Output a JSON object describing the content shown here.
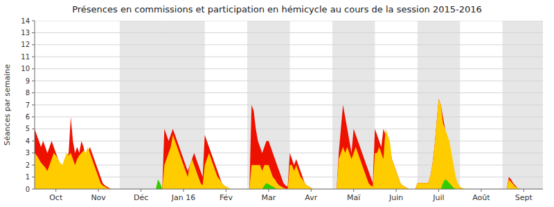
{
  "chart_data": {
    "type": "area",
    "title": "Présences en commissions et participation en hémicycle au cours de la session 2015-2016",
    "y_label": "Séances par semaine",
    "ylim": [
      0,
      14
    ],
    "yticks": [
      0,
      1,
      2,
      3,
      4,
      5,
      6,
      7,
      8,
      9,
      10,
      11,
      12,
      13,
      14
    ],
    "grid": true,
    "shaded_months": [
      "Déc",
      "Jan 16",
      "Mar",
      "Maï",
      "Juil",
      "Sept"
    ],
    "categories": [
      null,
      null,
      null,
      null,
      null,
      null,
      null,
      null,
      null,
      null,
      "Oct",
      null,
      null,
      null,
      null,
      null,
      null,
      null,
      null,
      null,
      null,
      null,
      null,
      null,
      null,
      null,
      null,
      null,
      null,
      null,
      "Nov",
      null,
      null,
      null,
      null,
      null,
      null,
      null,
      null,
      null,
      null,
      null,
      null,
      null,
      null,
      null,
      null,
      null,
      null,
      null,
      "Déc",
      null,
      null,
      null,
      null,
      null,
      null,
      null,
      null,
      null,
      null,
      null,
      null,
      null,
      null,
      null,
      null,
      null,
      null,
      null,
      "Jan 16",
      null,
      null,
      null,
      null,
      null,
      null,
      null,
      null,
      null,
      null,
      null,
      null,
      null,
      null,
      null,
      null,
      null,
      null,
      null,
      "Fév",
      null,
      null,
      null,
      null,
      null,
      null,
      null,
      null,
      null,
      null,
      null,
      null,
      null,
      null,
      null,
      null,
      null,
      null,
      null,
      "Mar",
      null,
      null,
      null,
      null,
      null,
      null,
      null,
      null,
      null,
      null,
      null,
      null,
      null,
      null,
      null,
      null,
      null,
      null,
      null,
      "Avr",
      null,
      null,
      null,
      null,
      null,
      null,
      null,
      null,
      null,
      null,
      null,
      null,
      null,
      null,
      null,
      null,
      null,
      null,
      null,
      "Maï",
      null,
      null,
      null,
      null,
      null,
      null,
      null,
      null,
      null,
      null,
      null,
      null,
      null,
      null,
      null,
      null,
      null,
      null,
      null,
      "Juin",
      null,
      null,
      null,
      null,
      null,
      null,
      null,
      null,
      null,
      null,
      null,
      null,
      null,
      null,
      null,
      null,
      null,
      null,
      null,
      "Juil",
      null,
      null,
      null,
      null,
      null,
      null,
      null,
      null,
      null,
      null,
      null,
      null,
      null,
      null,
      null,
      null,
      null,
      null,
      null,
      "Août",
      null,
      null,
      null,
      null,
      null,
      null,
      null,
      null,
      null,
      null,
      null,
      null,
      null,
      null,
      null,
      null,
      null,
      null,
      null,
      "Sept",
      null,
      null,
      null,
      null,
      null,
      null,
      null,
      null,
      null
    ],
    "series": [
      {
        "color": "#ee1100",
        "values": [
          5.0,
          4.5,
          4.0,
          3.5,
          4.0,
          3.5,
          3.0,
          3.5,
          4.0,
          3.5,
          3.0,
          2.5,
          2.0,
          1.5,
          2.0,
          2.5,
          3.0,
          6.0,
          4.0,
          3.0,
          3.5,
          3.0,
          4.0,
          3.5,
          2.5,
          3.0,
          3.5,
          3.0,
          2.5,
          2.0,
          1.5,
          1.0,
          0.5,
          0.3,
          0.2,
          0.1,
          0.0,
          0.0,
          0.0,
          0.0,
          0.0,
          0.0,
          0.0,
          0.0,
          0.0,
          0.0,
          0.0,
          0.0,
          0.0,
          0.0,
          0.0,
          0.0,
          0.0,
          0.0,
          0.0,
          0.0,
          0.0,
          0.0,
          0.0,
          0.0,
          0.0,
          5.0,
          4.5,
          4.0,
          4.5,
          5.0,
          4.5,
          4.0,
          3.5,
          3.0,
          2.5,
          2.0,
          1.5,
          2.0,
          2.5,
          3.0,
          2.5,
          2.0,
          1.5,
          1.0,
          4.5,
          4.0,
          3.5,
          3.0,
          2.5,
          2.0,
          1.5,
          1.0,
          0.5,
          0.3,
          0.2,
          0.1,
          0.0,
          0.0,
          0.0,
          0.0,
          0.0,
          0.0,
          0.0,
          0.0,
          0.0,
          0.0,
          7.0,
          6.5,
          5.0,
          4.0,
          3.5,
          3.0,
          3.5,
          4.0,
          4.0,
          3.5,
          3.0,
          2.5,
          2.0,
          1.5,
          1.0,
          0.5,
          0.3,
          0.2,
          3.0,
          2.5,
          2.0,
          2.5,
          2.0,
          1.5,
          1.0,
          0.5,
          0.3,
          0.2,
          0.1,
          0.0,
          0.0,
          0.0,
          0.0,
          0.0,
          0.0,
          0.0,
          0.0,
          0.0,
          0.0,
          0.0,
          0.0,
          3.0,
          5.0,
          7.0,
          6.0,
          5.0,
          4.0,
          3.0,
          5.0,
          4.5,
          4.0,
          3.5,
          3.0,
          2.5,
          2.0,
          1.5,
          1.0,
          0.5,
          5.0,
          4.5,
          4.0,
          3.5,
          5.0,
          4.5,
          4.0,
          3.5,
          2.5,
          2.0,
          1.5,
          1.0,
          0.5,
          0.3,
          0.2,
          0.1,
          0.0,
          0.0,
          0.0,
          0.0,
          0.5,
          0.5,
          0.5,
          0.5,
          0.5,
          0.5,
          1.0,
          2.0,
          3.5,
          5.5,
          7.5,
          7.0,
          6.0,
          5.0,
          4.0,
          3.0,
          2.0,
          1.0,
          0.5,
          0.3,
          0.0,
          0.0,
          0.0,
          0.0,
          0.0,
          0.0,
          0.0,
          0.0,
          0.0,
          0.0,
          0.0,
          0.0,
          0.0,
          0.0,
          0.0,
          0.0,
          0.0,
          0.0,
          0.0,
          0.0,
          0.0,
          0.0,
          0.0,
          1.0,
          0.8,
          0.5,
          0.3,
          0.1,
          0.0,
          0.0,
          0.0,
          0.0,
          0.0,
          0.0,
          0.0,
          0.0,
          0.0,
          0.0,
          0.0,
          0.0
        ]
      },
      {
        "color": "#ffcc00",
        "values": [
          3.0,
          2.8,
          2.5,
          2.2,
          2.0,
          1.8,
          1.5,
          2.0,
          2.5,
          3.0,
          2.8,
          2.5,
          2.2,
          2.0,
          2.5,
          3.0,
          2.8,
          3.0,
          2.5,
          2.0,
          2.5,
          2.8,
          3.0,
          3.2,
          3.0,
          3.5,
          3.0,
          2.5,
          2.0,
          1.5,
          1.0,
          0.5,
          0.3,
          0.2,
          0.1,
          0.05,
          0.0,
          0.0,
          0.0,
          0.0,
          0.0,
          0.0,
          0.0,
          0.0,
          0.0,
          0.0,
          0.0,
          0.0,
          0.0,
          0.0,
          0.0,
          0.0,
          0.0,
          0.0,
          0.0,
          0.0,
          0.0,
          0.0,
          0.0,
          0.0,
          0.0,
          2.0,
          2.5,
          3.0,
          3.5,
          4.5,
          4.0,
          3.5,
          3.0,
          2.5,
          2.0,
          1.5,
          1.0,
          2.0,
          2.5,
          2.0,
          1.5,
          1.0,
          0.5,
          0.3,
          2.0,
          2.5,
          3.0,
          2.5,
          2.0,
          1.5,
          1.0,
          0.8,
          0.5,
          0.3,
          0.2,
          0.1,
          0.0,
          0.0,
          0.0,
          0.0,
          0.0,
          0.0,
          0.0,
          0.0,
          0.0,
          0.0,
          2.0,
          2.0,
          2.0,
          2.0,
          2.0,
          1.5,
          2.0,
          2.0,
          2.0,
          1.5,
          1.0,
          0.8,
          0.5,
          0.3,
          0.2,
          0.1,
          0.05,
          0.0,
          2.0,
          2.0,
          1.5,
          2.0,
          1.5,
          1.0,
          0.8,
          0.5,
          0.3,
          0.2,
          0.1,
          0.0,
          0.0,
          0.0,
          0.0,
          0.0,
          0.0,
          0.0,
          0.0,
          0.0,
          0.0,
          0.0,
          0.0,
          2.5,
          3.0,
          3.5,
          3.0,
          3.5,
          3.0,
          2.5,
          3.0,
          3.5,
          3.0,
          2.5,
          2.0,
          1.5,
          1.0,
          0.5,
          0.3,
          0.2,
          3.0,
          3.0,
          3.5,
          3.0,
          2.5,
          5.0,
          4.5,
          4.0,
          2.5,
          2.0,
          1.5,
          1.0,
          0.5,
          0.3,
          0.2,
          0.1,
          0.0,
          0.0,
          0.0,
          0.0,
          0.5,
          0.5,
          0.5,
          0.5,
          0.5,
          0.5,
          1.0,
          2.0,
          3.5,
          5.5,
          7.5,
          7.0,
          5.5,
          5.0,
          4.5,
          4.0,
          3.0,
          2.0,
          1.0,
          0.5,
          0.2,
          0.1,
          0.05,
          0.0,
          0.0,
          0.0,
          0.0,
          0.0,
          0.0,
          0.0,
          0.0,
          0.0,
          0.0,
          0.0,
          0.0,
          0.0,
          0.0,
          0.0,
          0.0,
          0.0,
          0.0,
          0.0,
          0.0,
          0.8,
          0.6,
          0.4,
          0.2,
          0.1,
          0.0,
          0.0,
          0.0,
          0.0,
          0.0,
          0.0,
          0.0,
          0.0,
          0.0,
          0.0,
          0.0,
          0.0
        ]
      },
      {
        "color": "#33cc00",
        "values": [
          0.0,
          0.0,
          0.0,
          0.0,
          0.0,
          0.0,
          0.0,
          0.0,
          0.0,
          0.0,
          0.0,
          0.0,
          0.0,
          0.0,
          0.0,
          0.0,
          0.0,
          0.0,
          0.0,
          0.0,
          0.0,
          0.0,
          0.0,
          0.0,
          0.0,
          0.0,
          0.0,
          0.0,
          0.0,
          0.0,
          0.0,
          0.0,
          0.0,
          0.0,
          0.0,
          0.0,
          0.0,
          0.0,
          0.0,
          0.0,
          0.0,
          0.0,
          0.0,
          0.0,
          0.0,
          0.0,
          0.0,
          0.0,
          0.0,
          0.0,
          0.0,
          0.0,
          0.0,
          0.0,
          0.0,
          0.0,
          0.0,
          0.0,
          0.8,
          0.5,
          0.0,
          0.0,
          0.0,
          0.0,
          0.0,
          0.0,
          0.0,
          0.0,
          0.0,
          0.0,
          0.0,
          0.0,
          0.0,
          0.0,
          0.0,
          0.0,
          0.0,
          0.0,
          0.0,
          0.0,
          0.0,
          0.0,
          0.0,
          0.0,
          0.0,
          0.0,
          0.0,
          0.0,
          0.0,
          0.0,
          0.0,
          0.0,
          0.0,
          0.0,
          0.0,
          0.0,
          0.0,
          0.0,
          0.0,
          0.0,
          0.0,
          0.0,
          0.0,
          0.0,
          0.0,
          0.0,
          0.0,
          0.0,
          0.3,
          0.5,
          0.4,
          0.3,
          0.2,
          0.1,
          0.0,
          0.0,
          0.0,
          0.0,
          0.0,
          0.0,
          0.0,
          0.0,
          0.0,
          0.0,
          0.0,
          0.0,
          0.0,
          0.0,
          0.0,
          0.0,
          0.0,
          0.0,
          0.0,
          0.0,
          0.0,
          0.0,
          0.0,
          0.0,
          0.0,
          0.0,
          0.0,
          0.0,
          0.0,
          0.0,
          0.0,
          0.0,
          0.0,
          0.0,
          0.0,
          0.0,
          0.0,
          0.0,
          0.0,
          0.0,
          0.0,
          0.0,
          0.0,
          0.0,
          0.0,
          0.0,
          0.0,
          0.0,
          0.0,
          0.0,
          0.0,
          0.0,
          0.0,
          0.0,
          0.0,
          0.0,
          0.0,
          0.0,
          0.0,
          0.0,
          0.0,
          0.0,
          0.0,
          0.0,
          0.0,
          0.0,
          0.0,
          0.0,
          0.0,
          0.0,
          0.0,
          0.0,
          0.0,
          0.0,
          0.0,
          0.0,
          0.0,
          0.0,
          0.5,
          0.8,
          0.7,
          0.5,
          0.3,
          0.1,
          0.0,
          0.0,
          0.0,
          0.0,
          0.0,
          0.0,
          0.0,
          0.0,
          0.0,
          0.0,
          0.0,
          0.0,
          0.0,
          0.0,
          0.0,
          0.0,
          0.0,
          0.0,
          0.0,
          0.0,
          0.0,
          0.0,
          0.0,
          0.0,
          0.0,
          0.0,
          0.0,
          0.0,
          0.0,
          0.0,
          0.0,
          0.0,
          0.0,
          0.0,
          0.0,
          0.0,
          0.0,
          0.0,
          0.0,
          0.0,
          0.0,
          0.0
        ]
      }
    ]
  }
}
